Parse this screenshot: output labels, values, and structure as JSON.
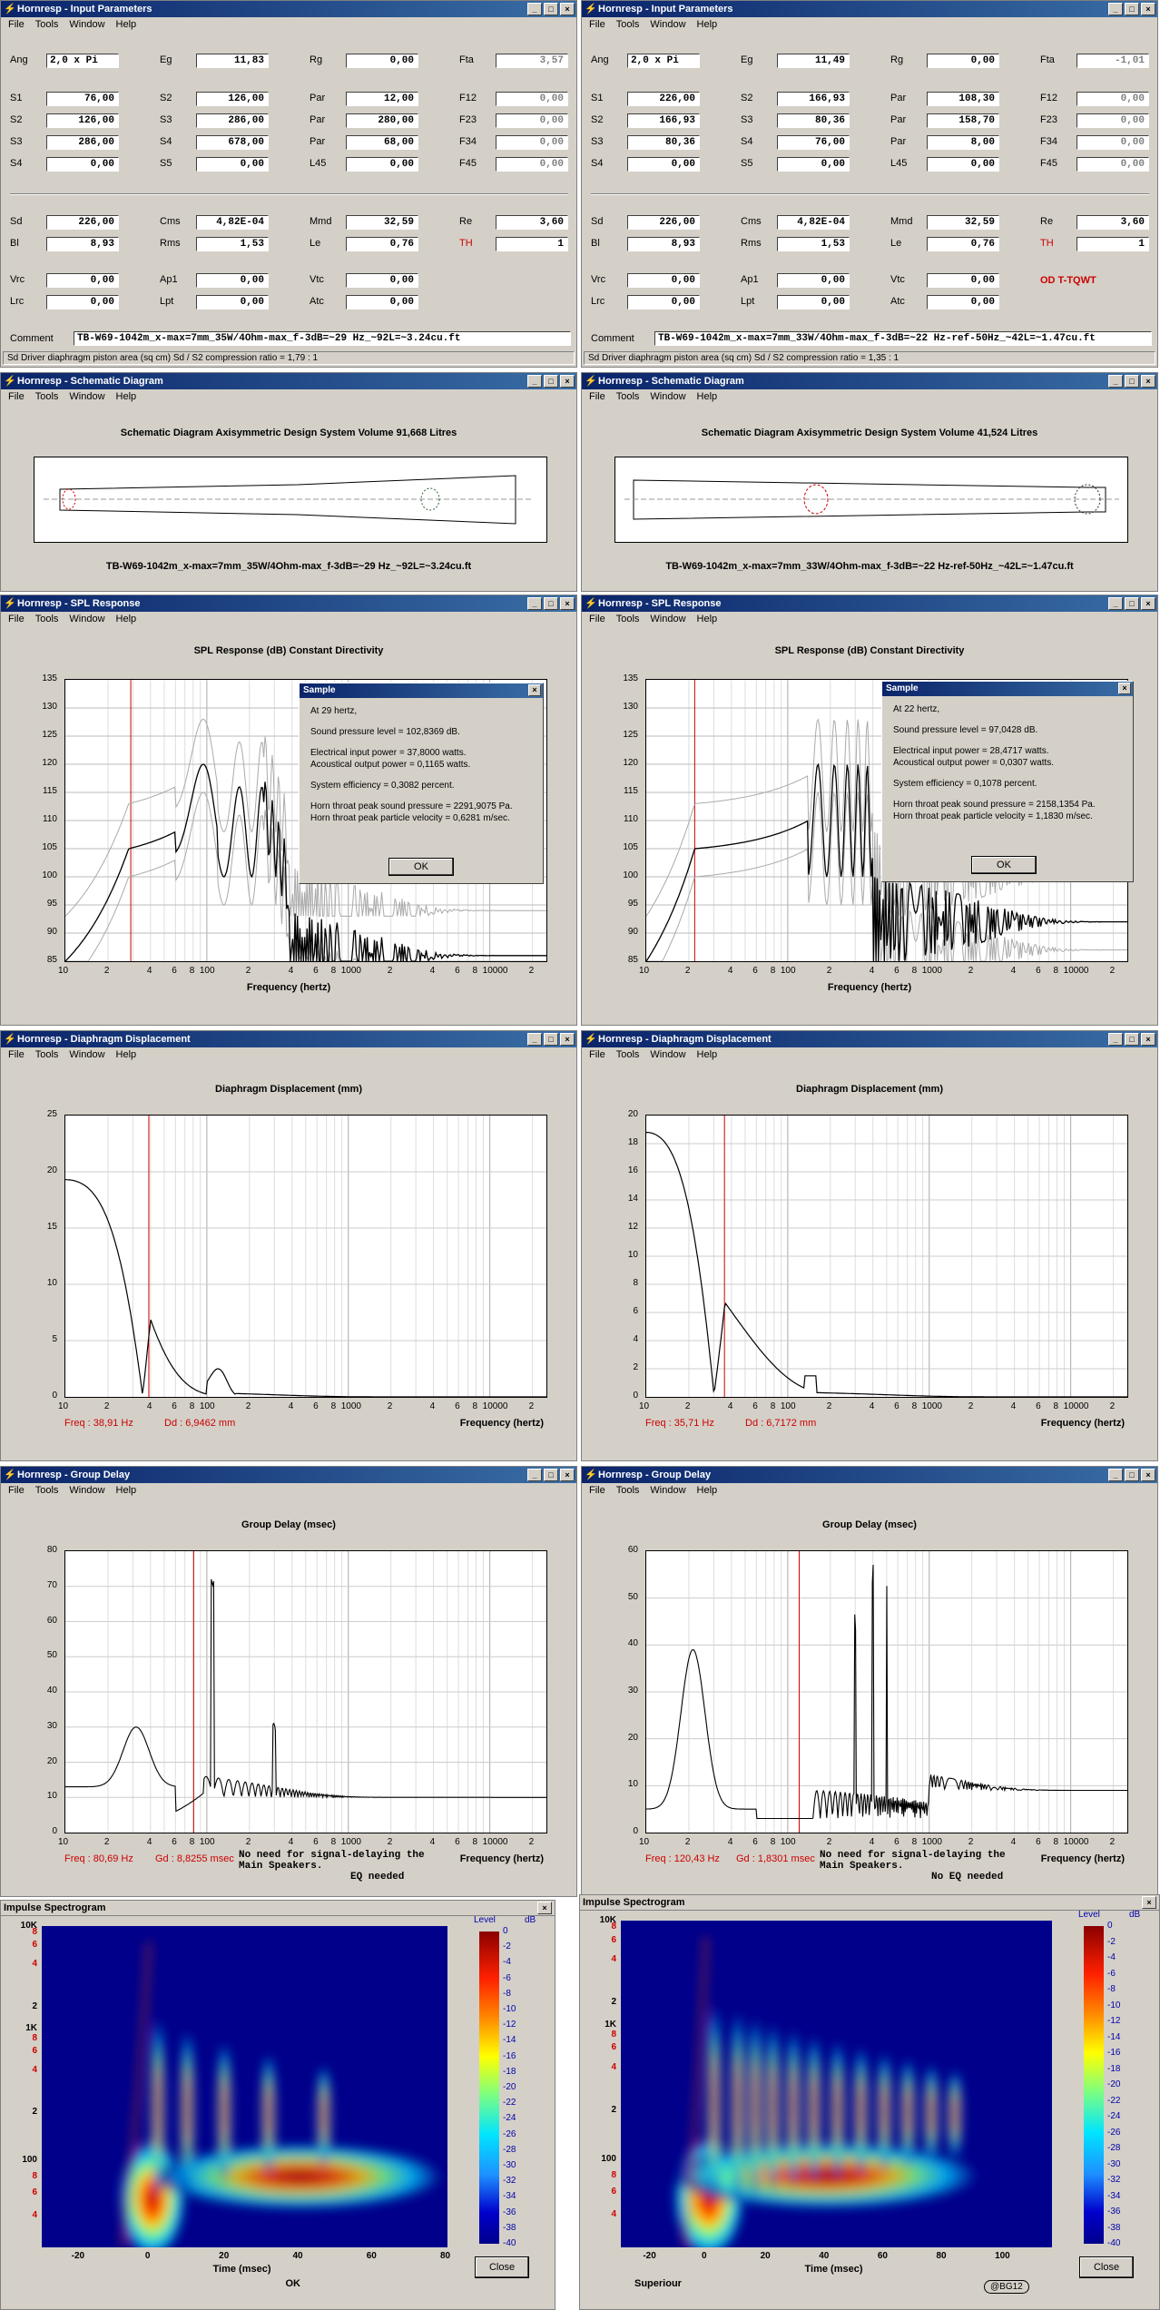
{
  "menu": [
    "File",
    "Tools",
    "Window",
    "Help"
  ],
  "title_buttons": [
    "_",
    "□",
    "×"
  ],
  "left": {
    "input": {
      "title": "Hornresp - Input Parameters",
      "rows": [
        [
          [
            "Ang",
            "2,0 x Pi"
          ],
          [
            "Eg",
            "11,83"
          ],
          [
            "Rg",
            "0,00"
          ],
          [
            "Fta",
            "3,57"
          ]
        ],
        [
          [
            "S1",
            "76,00"
          ],
          [
            "S2",
            "126,00"
          ],
          [
            "Par",
            "12,00"
          ],
          [
            "F12",
            "0,00"
          ]
        ],
        [
          [
            "S2",
            "126,00"
          ],
          [
            "S3",
            "286,00"
          ],
          [
            "Par",
            "280,00"
          ],
          [
            "F23",
            "0,00"
          ]
        ],
        [
          [
            "S3",
            "286,00"
          ],
          [
            "S4",
            "678,00"
          ],
          [
            "Par",
            "68,00"
          ],
          [
            "F34",
            "0,00"
          ]
        ],
        [
          [
            "S4",
            "0,00"
          ],
          [
            "S5",
            "0,00"
          ],
          [
            "L45",
            "0,00"
          ],
          [
            "F45",
            "0,00"
          ]
        ]
      ],
      "rows2": [
        [
          [
            "Sd",
            "226,00"
          ],
          [
            "Cms",
            "4,82E-04"
          ],
          [
            "Mmd",
            "32,59"
          ],
          [
            "Re",
            "3,60"
          ]
        ],
        [
          [
            "Bl",
            "8,93"
          ],
          [
            "Rms",
            "1,53"
          ],
          [
            "Le",
            "0,76"
          ],
          [
            "TH",
            "1"
          ]
        ]
      ],
      "rows3": [
        [
          [
            "Vrc",
            "0,00"
          ],
          [
            "Ap1",
            "0,00"
          ],
          [
            "Vtc",
            "0,00"
          ]
        ],
        [
          [
            "Lrc",
            "0,00"
          ],
          [
            "Lpt",
            "0,00"
          ],
          [
            "Atc",
            "0,00"
          ]
        ]
      ],
      "comment_label": "Comment",
      "comment": "TB-W69-1042m_x-max=7mm_35W/4Ohm-max_f-3dB=~29 Hz_~92L=~3.24cu.ft",
      "status": "Sd  Driver diaphragm piston area  (sq cm)    Sd / S2 compression ratio = 1,79 : 1",
      "annotation": ""
    },
    "schem": {
      "title": "Hornresp - Schematic Diagram",
      "heading": "Schematic Diagram    Axisymmetric Design    System Volume 91,668 Litres",
      "caption": "TB-W69-1042m_x-max=7mm_35W/4Ohm-max_f-3dB=~29 Hz_~92L=~3.24cu.ft"
    },
    "spl": {
      "title": "Hornresp - SPL Response",
      "heading": "SPL Response (dB)    Constant Directivity",
      "xlabel": "Frequency (hertz)",
      "yticks": [
        "135",
        "130",
        "125",
        "120",
        "115",
        "110",
        "105",
        "100",
        "95",
        "90",
        "85"
      ],
      "sample": {
        "title": "Sample",
        "lines": [
          "At 29 hertz,",
          "Sound pressure level = 102,8369 dB.",
          "Electrical input power = 37,8000 watts.",
          "Acoustical output power = 0,1165 watts.",
          "System efficiency = 0,3082 percent.",
          "Horn throat peak sound pressure = 2291,9075 Pa.",
          "Horn throat peak particle velocity = 0,6281 m/sec."
        ],
        "ok": "OK"
      }
    },
    "disp": {
      "title": "Hornresp - Diaphragm Displacement",
      "heading": "Diaphragm Displacement (mm)",
      "xlabel": "Frequency (hertz)",
      "yticks": [
        "25",
        "20",
        "15",
        "10",
        "5",
        "0"
      ],
      "freq": "Freq : 38,91 Hz",
      "dd": "Dd : 6,9462 mm"
    },
    "gd": {
      "title": "Hornresp - Group Delay",
      "heading": "Group Delay (msec)",
      "xlabel": "Frequency (hertz)",
      "yticks": [
        "80",
        "70",
        "60",
        "50",
        "40",
        "30",
        "20",
        "10",
        "0"
      ],
      "freq": "Freq : 80,69 Hz",
      "gdv": "Gd : 8,8255 msec",
      "note1": "No need for signal-delaying the",
      "note2": "Main Speakers.",
      "note3": "EQ needed"
    },
    "spectro": {
      "title": "Impulse Spectrogram",
      "xticks": [
        "-20",
        "0",
        "20",
        "40",
        "60",
        "80"
      ],
      "xlabel": "Time (msec)",
      "close": "Close",
      "extra": "OK"
    }
  },
  "right": {
    "input": {
      "title": "Hornresp - Input Parameters",
      "rows": [
        [
          [
            "Ang",
            "2,0 x Pi"
          ],
          [
            "Eg",
            "11,49"
          ],
          [
            "Rg",
            "0,00"
          ],
          [
            "Fta",
            "-1,01"
          ]
        ],
        [
          [
            "S1",
            "226,00"
          ],
          [
            "S2",
            "166,93"
          ],
          [
            "Par",
            "108,30"
          ],
          [
            "F12",
            "0,00"
          ]
        ],
        [
          [
            "S2",
            "166,93"
          ],
          [
            "S3",
            "80,36"
          ],
          [
            "Par",
            "158,70"
          ],
          [
            "F23",
            "0,00"
          ]
        ],
        [
          [
            "S3",
            "80,36"
          ],
          [
            "S4",
            "76,00"
          ],
          [
            "Par",
            "8,00"
          ],
          [
            "F34",
            "0,00"
          ]
        ],
        [
          [
            "S4",
            "0,00"
          ],
          [
            "S5",
            "0,00"
          ],
          [
            "L45",
            "0,00"
          ],
          [
            "F45",
            "0,00"
          ]
        ]
      ],
      "rows2": [
        [
          [
            "Sd",
            "226,00"
          ],
          [
            "Cms",
            "4,82E-04"
          ],
          [
            "Mmd",
            "32,59"
          ],
          [
            "Re",
            "3,60"
          ]
        ],
        [
          [
            "Bl",
            "8,93"
          ],
          [
            "Rms",
            "1,53"
          ],
          [
            "Le",
            "0,76"
          ],
          [
            "TH",
            "1"
          ]
        ]
      ],
      "rows3": [
        [
          [
            "Vrc",
            "0,00"
          ],
          [
            "Ap1",
            "0,00"
          ],
          [
            "Vtc",
            "0,00"
          ]
        ],
        [
          [
            "Lrc",
            "0,00"
          ],
          [
            "Lpt",
            "0,00"
          ],
          [
            "Atc",
            "0,00"
          ]
        ]
      ],
      "comment_label": "Comment",
      "comment": "TB-W69-1042m_x-max=7mm_33W/4Ohm-max_f-3dB=~22 Hz-ref-50Hz_~42L=~1.47cu.ft",
      "status": "Sd  Driver diaphragm piston area  (sq cm)    Sd / S2 compression ratio = 1,35 : 1",
      "annotation": "OD T-TQWT"
    },
    "schem": {
      "title": "Hornresp - Schematic Diagram",
      "heading": "Schematic Diagram    Axisymmetric Design    System Volume 41,524 Litres",
      "caption": "TB-W69-1042m_x-max=7mm_33W/4Ohm-max_f-3dB=~22 Hz-ref-50Hz_~42L=~1.47cu.ft"
    },
    "spl": {
      "title": "Hornresp - SPL Response",
      "heading": "SPL Response (dB)    Constant Directivity",
      "xlabel": "Frequency (hertz)",
      "yticks": [
        "135",
        "130",
        "125",
        "120",
        "115",
        "110",
        "105",
        "100",
        "95",
        "90",
        "85"
      ],
      "sample": {
        "title": "Sample",
        "lines": [
          "At 22 hertz,",
          "Sound pressure level = 97,0428 dB.",
          "Electrical input power = 28,4717 watts.",
          "Acoustical output power = 0,0307 watts.",
          "System efficiency = 0,1078 percent.",
          "Horn throat peak sound pressure = 2158,1354 Pa.",
          "Horn throat peak particle velocity = 1,1830 m/sec."
        ],
        "ok": "OK"
      }
    },
    "disp": {
      "title": "Hornresp - Diaphragm Displacement",
      "heading": "Diaphragm Displacement (mm)",
      "xlabel": "Frequency (hertz)",
      "yticks": [
        "20",
        "18",
        "16",
        "14",
        "12",
        "10",
        "8",
        "6",
        "4",
        "2",
        "0"
      ],
      "freq": "Freq : 35,71 Hz",
      "dd": "Dd : 6,7172 mm"
    },
    "gd": {
      "title": "Hornresp - Group Delay",
      "heading": "Group Delay (msec)",
      "xlabel": "Frequency (hertz)",
      "yticks": [
        "60",
        "50",
        "40",
        "30",
        "20",
        "10",
        "0"
      ],
      "freq": "Freq : 120,43 Hz",
      "gdv": "Gd : 1,8301 msec",
      "note1": "No need for signal-delaying the",
      "note2": "Main Speakers.",
      "note3": "No EQ needed"
    },
    "spectro": {
      "title": "Impulse Spectrogram",
      "xticks": [
        "-20",
        "0",
        "20",
        "40",
        "60",
        "80",
        "100"
      ],
      "xlabel": "Time (msec)",
      "close": "Close",
      "extra": "Superiour",
      "badge": "@BG12"
    }
  },
  "freq_ticks": [
    "10",
    "2",
    "4",
    "6",
    "8",
    "100",
    "2",
    "4",
    "6",
    "8",
    "1000",
    "2",
    "4",
    "6",
    "8",
    "10000",
    "2"
  ],
  "spectro_yticks": [
    "10K",
    "8",
    "6",
    "4",
    "2",
    "1K",
    "8",
    "6",
    "4",
    "2",
    "100",
    "8",
    "6",
    "4"
  ],
  "level_label": "Level",
  "level_unit": "dB",
  "level_ticks": [
    "0",
    "-2",
    "-4",
    "-6",
    "-8",
    "-10",
    "-12",
    "-14",
    "-16",
    "-18",
    "-20",
    "-22",
    "-24",
    "-26",
    "-28",
    "-30",
    "-32",
    "-34",
    "-36",
    "-38",
    "-40"
  ],
  "colors": {
    "title_start": "#0a246a",
    "title_end": "#3a6ea5",
    "face": "#d4d0c8",
    "marker": "#cc0000",
    "spectro_bg": "#00008b"
  }
}
